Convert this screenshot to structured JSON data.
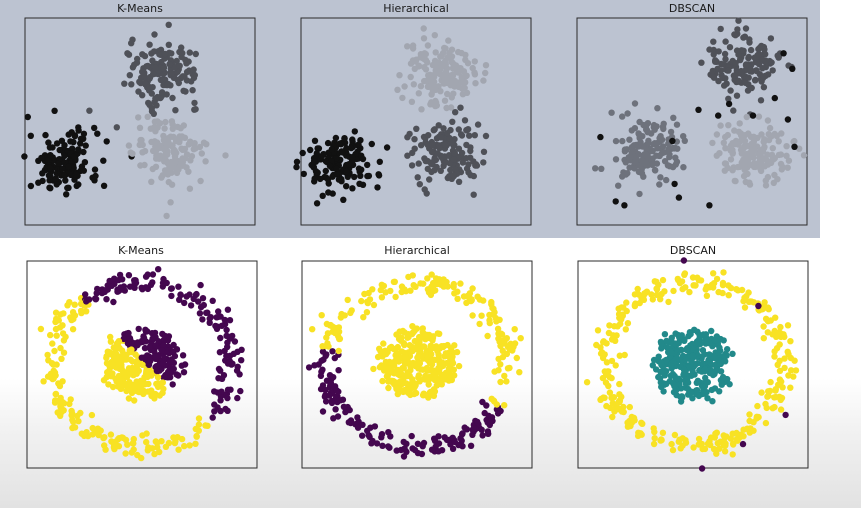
{
  "top_row": {
    "titles": [
      "K-Means",
      "Hierarchical",
      "DBSCAN"
    ]
  },
  "bottom_row": {
    "titles": [
      "K-Means",
      "Hierarchical",
      "DBSCAN"
    ]
  },
  "colors": {
    "top_background": "#bcc3d1",
    "blob_black": "#111111",
    "blob_dark_gray": "#4f5158",
    "blob_mid_gray": "#6e727c",
    "blob_light_gray": "#a2a6b0",
    "purple": "#44074f",
    "yellow": "#f8e224",
    "teal": "#22898a"
  },
  "chart_data": [
    {
      "type": "scatter",
      "title": "K-Means",
      "dataset": "blobs",
      "xlim": [
        -10,
        10
      ],
      "ylim": [
        -10,
        10
      ],
      "grid": false,
      "series": [
        {
          "cx": -7,
          "cy": -4.2,
          "spread": 1.6,
          "n": 150,
          "color": "#111111"
        },
        {
          "cx": 2.2,
          "cy": 5.0,
          "spread": 1.6,
          "n": 150,
          "color": "#4f5158"
        },
        {
          "cx": 2.8,
          "cy": -3.2,
          "spread": 1.6,
          "n": 150,
          "color": "#a2a6b0"
        }
      ]
    },
    {
      "type": "scatter",
      "title": "Hierarchical",
      "dataset": "blobs",
      "xlim": [
        -10,
        10
      ],
      "ylim": [
        -10,
        10
      ],
      "grid": false,
      "series": [
        {
          "cx": -7,
          "cy": -4.2,
          "spread": 1.6,
          "n": 150,
          "color": "#111111"
        },
        {
          "cx": 2.2,
          "cy": 5.0,
          "spread": 1.6,
          "n": 150,
          "color": "#a2a6b0"
        },
        {
          "cx": 2.8,
          "cy": -3.2,
          "spread": 1.6,
          "n": 150,
          "color": "#4f5158"
        }
      ]
    },
    {
      "type": "scatter",
      "title": "DBSCAN",
      "dataset": "blobs",
      "xlim": [
        -10,
        10
      ],
      "ylim": [
        -10,
        10
      ],
      "grid": false,
      "series": [
        {
          "cx": -4.2,
          "cy": -3.0,
          "spread": 1.6,
          "n": 150,
          "color": "#6e727c"
        },
        {
          "cx": 4.8,
          "cy": 5.8,
          "spread": 1.6,
          "n": 150,
          "color": "#4f5158"
        },
        {
          "cx": 5.6,
          "cy": -3.0,
          "spread": 1.6,
          "n": 150,
          "color": "#a2a6b0"
        }
      ],
      "noise_color": "#111111"
    },
    {
      "type": "scatter",
      "title": "K-Means",
      "dataset": "circles",
      "xlim": [
        -1.2,
        1.2
      ],
      "ylim": [
        -1.2,
        1.2
      ],
      "grid": false,
      "outer_radius": 1.0,
      "inner_radius": 0.42,
      "split_by_line": {
        "nx": 0.75,
        "ny": 0.66,
        "offset": 0.05
      },
      "colors": {
        "side_a": "#44074f",
        "side_b": "#f8e224"
      }
    },
    {
      "type": "scatter",
      "title": "Hierarchical",
      "dataset": "circles",
      "xlim": [
        -1.2,
        1.2
      ],
      "ylim": [
        -1.2,
        1.2
      ],
      "grid": false,
      "outer_radius": 1.0,
      "inner_radius": 0.42,
      "outer_purple_arc_deg": [
        170,
        330
      ],
      "colors": {
        "inner": "#f8e224",
        "outer_main": "#f8e224",
        "outer_arc": "#44074f"
      }
    },
    {
      "type": "scatter",
      "title": "DBSCAN",
      "dataset": "circles",
      "xlim": [
        -1.2,
        1.2
      ],
      "ylim": [
        -1.2,
        1.2
      ],
      "grid": false,
      "outer_radius": 1.0,
      "inner_radius": 0.42,
      "colors": {
        "inner": "#22898a",
        "outer": "#f8e224",
        "noise": "#44074f"
      }
    }
  ]
}
